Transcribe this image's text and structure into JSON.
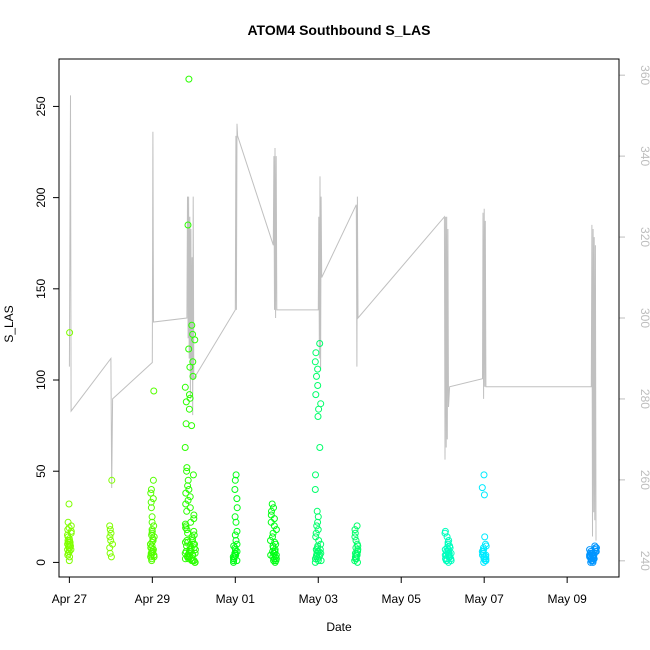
{
  "chart_data": {
    "type": "scatter",
    "title": "ATOM4 Southbound S_LAS",
    "xlabel": "Date",
    "ylabel": "S_LAS",
    "x_range": [
      "2015-04-26T18:00",
      "2015-05-10T06:00"
    ],
    "x_ticks": [
      {
        "date": "2015-04-27",
        "label": "Apr 27"
      },
      {
        "date": "2015-04-29",
        "label": "Apr 29"
      },
      {
        "date": "2015-05-01",
        "label": "May 01"
      },
      {
        "date": "2015-05-03",
        "label": "May 03"
      },
      {
        "date": "2015-05-05",
        "label": "May 05"
      },
      {
        "date": "2015-05-07",
        "label": "May 07"
      },
      {
        "date": "2015-05-09",
        "label": "May 09"
      }
    ],
    "ylim": [
      -8,
      276
    ],
    "y_ticks": [
      0,
      50,
      100,
      150,
      200,
      250
    ],
    "y2lim": [
      236,
      364
    ],
    "y2_ticks": [
      240,
      260,
      280,
      300,
      320,
      340,
      360
    ],
    "grid": false,
    "legend": "none",
    "series": [
      {
        "marker": "open-circle",
        "colors": [
          "#80ff00",
          "#55ff00",
          "#2bff00",
          "#00ff15",
          "#00ff6a",
          "#00ffbf",
          "#00eaff",
          "#0095ff"
        ],
        "clusters": [
          {
            "date": "2015-04-27T00:00",
            "spread_h": 2.4,
            "color": "#80ff00",
            "values": [
              1,
              3,
              4,
              5,
              6,
              6,
              7,
              7,
              8,
              8,
              9,
              9,
              10,
              10,
              10,
              11,
              11,
              12,
              12,
              13,
              14,
              15,
              16,
              17,
              18,
              19,
              20,
              22,
              32,
              126
            ]
          },
          {
            "date": "2015-04-28T00:00",
            "spread_h": 2.0,
            "color": "#80ff00",
            "values": [
              3,
              5,
              8,
              10,
              12,
              14,
              16,
              18,
              20,
              45
            ]
          },
          {
            "date": "2015-04-29T00:00",
            "spread_h": 2.4,
            "color": "#55ff00",
            "values": [
              1,
              2,
              3,
              3,
              4,
              4,
              5,
              5,
              6,
              6,
              7,
              7,
              8,
              8,
              9,
              10,
              10,
              11,
              12,
              13,
              14,
              15,
              16,
              17,
              18,
              20,
              22,
              25,
              30,
              33,
              35,
              38,
              40,
              45,
              94
            ]
          },
          {
            "date": "2015-04-29T22:00",
            "spread_h": 6.0,
            "color": "#2bff00",
            "values": [
              0,
              0,
              1,
              1,
              1,
              2,
              2,
              2,
              3,
              3,
              3,
              4,
              4,
              4,
              5,
              5,
              5,
              6,
              6,
              6,
              7,
              7,
              8,
              8,
              9,
              9,
              10,
              10,
              11,
              11,
              12,
              12,
              13,
              14,
              15,
              16,
              17,
              18,
              19,
              20,
              21,
              22,
              24,
              26,
              28,
              30,
              32,
              34,
              36,
              38,
              40,
              42,
              45,
              48,
              50,
              52,
              63,
              75,
              76,
              84,
              88,
              90,
              92,
              96,
              102,
              107,
              110,
              117,
              122,
              125,
              130,
              185,
              265
            ]
          },
          {
            "date": "2015-05-01T00:00",
            "spread_h": 2.4,
            "color": "#00ff15",
            "values": [
              0,
              1,
              1,
              2,
              2,
              3,
              3,
              4,
              4,
              5,
              5,
              6,
              7,
              8,
              9,
              10,
              12,
              15,
              17,
              22,
              25,
              30,
              35,
              40,
              45,
              48
            ]
          },
          {
            "date": "2015-05-01T22:00",
            "spread_h": 3.6,
            "color": "#00ff15",
            "values": [
              0,
              1,
              1,
              2,
              2,
              3,
              3,
              4,
              4,
              5,
              5,
              6,
              6,
              7,
              8,
              9,
              10,
              11,
              12,
              14,
              16,
              18,
              20,
              22,
              24,
              26,
              28,
              30,
              32
            ]
          },
          {
            "date": "2015-05-03T00:00",
            "spread_h": 3.6,
            "color": "#00ff6a",
            "values": [
              0,
              1,
              1,
              2,
              2,
              3,
              3,
              4,
              4,
              5,
              5,
              6,
              6,
              7,
              7,
              8,
              9,
              10,
              12,
              14,
              16,
              18,
              20,
              22,
              25,
              28,
              40,
              48,
              63,
              80,
              84,
              87,
              92,
              97,
              102,
              106,
              110,
              115,
              120
            ]
          },
          {
            "date": "2015-05-03T22:00",
            "spread_h": 2.0,
            "color": "#00ff6a",
            "values": [
              0,
              1,
              2,
              2,
              3,
              3,
              4,
              4,
              5,
              5,
              6,
              7,
              8,
              9,
              10,
              12,
              14,
              16,
              18,
              20
            ]
          },
          {
            "date": "2015-05-06T03:00",
            "spread_h": 4.0,
            "color": "#00ffbf",
            "values": [
              0,
              1,
              1,
              1,
              2,
              2,
              2,
              3,
              3,
              3,
              4,
              4,
              4,
              5,
              5,
              5,
              6,
              6,
              6,
              7,
              7,
              8,
              8,
              9,
              10,
              11,
              12,
              14,
              16,
              17
            ]
          },
          {
            "date": "2015-05-07T00:00",
            "spread_h": 2.4,
            "color": "#00eaff",
            "values": [
              0,
              1,
              1,
              2,
              2,
              3,
              3,
              4,
              4,
              5,
              5,
              6,
              6,
              7,
              8,
              9,
              10,
              14,
              37,
              41,
              48
            ]
          },
          {
            "date": "2015-05-09T15:00",
            "spread_h": 4.0,
            "color": "#0095ff",
            "values": [
              0,
              0,
              1,
              1,
              1,
              2,
              2,
              2,
              2,
              3,
              3,
              3,
              3,
              4,
              4,
              4,
              4,
              5,
              5,
              5,
              5,
              6,
              6,
              6,
              7,
              7,
              8,
              8,
              9
            ]
          }
        ]
      },
      {
        "axis": "right",
        "color": "#c0c0c0",
        "style": "line",
        "vertices": [
          {
            "t": "2015-04-27T00:00",
            "y": 288
          },
          {
            "t": "2015-04-27T00:40",
            "y": 355
          },
          {
            "t": "2015-04-27T01:00",
            "y": 277
          },
          {
            "t": "2015-04-28T00:00",
            "y": 290
          },
          {
            "t": "2015-04-28T00:30",
            "y": 258
          },
          {
            "t": "2015-04-28T01:00",
            "y": 280
          },
          {
            "t": "2015-04-29T00:00",
            "y": 289
          },
          {
            "t": "2015-04-29T00:20",
            "y": 346
          },
          {
            "t": "2015-04-29T00:40",
            "y": 299
          },
          {
            "t": "2015-04-29T20:00",
            "y": 300
          },
          {
            "t": "2015-04-29T20:20",
            "y": 330
          },
          {
            "t": "2015-04-29T20:40",
            "y": 295
          },
          {
            "t": "2015-04-29T21:00",
            "y": 330
          },
          {
            "t": "2015-04-29T21:20",
            "y": 290
          },
          {
            "t": "2015-04-29T21:40",
            "y": 325
          },
          {
            "t": "2015-04-29T22:00",
            "y": 280
          },
          {
            "t": "2015-04-29T22:20",
            "y": 322
          },
          {
            "t": "2015-04-29T22:40",
            "y": 285
          },
          {
            "t": "2015-04-29T23:00",
            "y": 315
          },
          {
            "t": "2015-04-29T23:20",
            "y": 276
          },
          {
            "t": "2015-04-29T23:40",
            "y": 330
          },
          {
            "t": "2015-04-30T00:00",
            "y": 285
          },
          {
            "t": "2015-05-01T00:00",
            "y": 302
          },
          {
            "t": "2015-05-01T00:20",
            "y": 345
          },
          {
            "t": "2015-05-01T00:40",
            "y": 302
          },
          {
            "t": "2015-05-01T01:00",
            "y": 348
          },
          {
            "t": "2015-05-01T01:20",
            "y": 345
          },
          {
            "t": "2015-05-01T22:00",
            "y": 318
          },
          {
            "t": "2015-05-01T22:20",
            "y": 340
          },
          {
            "t": "2015-05-01T22:40",
            "y": 302
          },
          {
            "t": "2015-05-01T23:00",
            "y": 342
          },
          {
            "t": "2015-05-01T23:20",
            "y": 300
          },
          {
            "t": "2015-05-01T23:40",
            "y": 340
          },
          {
            "t": "2015-05-02T00:00",
            "y": 302
          },
          {
            "t": "2015-05-03T00:00",
            "y": 302
          },
          {
            "t": "2015-05-03T00:20",
            "y": 325
          },
          {
            "t": "2015-05-03T00:40",
            "y": 290
          },
          {
            "t": "2015-05-03T01:00",
            "y": 335
          },
          {
            "t": "2015-05-03T01:20",
            "y": 287
          },
          {
            "t": "2015-05-03T01:40",
            "y": 330
          },
          {
            "t": "2015-05-03T02:00",
            "y": 310
          },
          {
            "t": "2015-05-03T22:00",
            "y": 328
          },
          {
            "t": "2015-05-03T22:20",
            "y": 288
          },
          {
            "t": "2015-05-03T22:40",
            "y": 330
          },
          {
            "t": "2015-05-03T23:00",
            "y": 300
          },
          {
            "t": "2015-05-06T01:00",
            "y": 325
          },
          {
            "t": "2015-05-06T01:20",
            "y": 265
          },
          {
            "t": "2015-05-06T01:40",
            "y": 325
          },
          {
            "t": "2015-05-06T02:00",
            "y": 268
          },
          {
            "t": "2015-05-06T02:20",
            "y": 325
          },
          {
            "t": "2015-05-06T02:40",
            "y": 270
          },
          {
            "t": "2015-05-06T03:00",
            "y": 322
          },
          {
            "t": "2015-05-06T03:20",
            "y": 278
          },
          {
            "t": "2015-05-06T04:00",
            "y": 283
          },
          {
            "t": "2015-05-06T23:00",
            "y": 285
          },
          {
            "t": "2015-05-06T23:20",
            "y": 326
          },
          {
            "t": "2015-05-06T23:40",
            "y": 280
          },
          {
            "t": "2015-05-07T00:00",
            "y": 327
          },
          {
            "t": "2015-05-07T00:20",
            "y": 283
          },
          {
            "t": "2015-05-07T00:40",
            "y": 324
          },
          {
            "t": "2015-05-07T01:00",
            "y": 283
          },
          {
            "t": "2015-05-09T14:00",
            "y": 283
          },
          {
            "t": "2015-05-09T14:20",
            "y": 323
          },
          {
            "t": "2015-05-09T14:40",
            "y": 246
          },
          {
            "t": "2015-05-09T15:00",
            "y": 322
          },
          {
            "t": "2015-05-09T15:20",
            "y": 252
          },
          {
            "t": "2015-05-09T15:40",
            "y": 320
          },
          {
            "t": "2015-05-09T16:00",
            "y": 250
          },
          {
            "t": "2015-05-09T16:20",
            "y": 318
          },
          {
            "t": "2015-05-09T16:40",
            "y": 245
          }
        ]
      }
    ]
  }
}
